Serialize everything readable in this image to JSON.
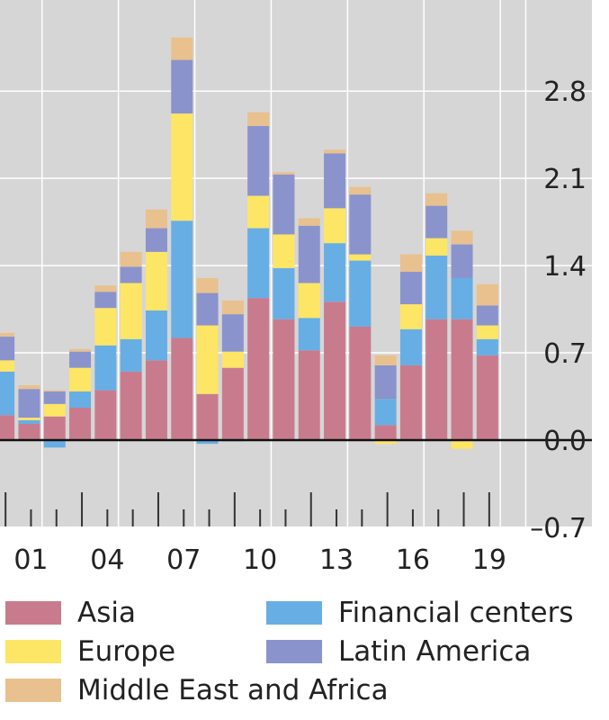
{
  "chart_data": {
    "type": "bar",
    "stacked": true,
    "title": "",
    "xlabel": "",
    "ylabel": "",
    "ylim": [
      -0.7,
      3.2
    ],
    "yticks": [
      "2.8",
      "2.1",
      "1.4",
      "0.7",
      "0.0",
      "–0.7"
    ],
    "ytick_values": [
      2.8,
      2.1,
      1.4,
      0.7,
      0.0,
      -0.7
    ],
    "xtick_labels": [
      "01",
      "04",
      "07",
      "10",
      "13",
      "16",
      "19"
    ],
    "xtick_years": [
      2001,
      2004,
      2007,
      2010,
      2013,
      2016,
      2019
    ],
    "x": [
      2000,
      2001,
      2002,
      2003,
      2004,
      2005,
      2006,
      2007,
      2008,
      2009,
      2010,
      2011,
      2012,
      2013,
      2014,
      2015,
      2016,
      2017,
      2018,
      2019
    ],
    "grid": true,
    "y_axis_side": "right",
    "legend_position": "bottom",
    "series": [
      {
        "name": "Asia",
        "color": "#c97b8e",
        "values": [
          0.2,
          0.13,
          0.19,
          0.26,
          0.4,
          0.55,
          0.64,
          0.82,
          0.37,
          0.58,
          1.14,
          0.97,
          0.72,
          1.11,
          0.91,
          0.12,
          0.6,
          0.97,
          0.97,
          0.68
        ]
      },
      {
        "name": "Financial centers",
        "color": "#67aee4",
        "values": [
          0.35,
          0.03,
          -0.06,
          0.13,
          0.36,
          0.26,
          0.4,
          0.94,
          -0.03,
          -0.01,
          0.56,
          0.41,
          0.26,
          0.47,
          0.53,
          0.21,
          0.29,
          0.51,
          0.33,
          0.13
        ]
      },
      {
        "name": "Europe",
        "color": "#fde565",
        "values": [
          0.09,
          0.02,
          0.1,
          0.19,
          0.3,
          0.45,
          0.47,
          0.86,
          0.55,
          0.13,
          0.26,
          0.27,
          0.28,
          0.28,
          0.05,
          -0.03,
          0.2,
          0.14,
          -0.07,
          0.11
        ]
      },
      {
        "name": "Latin America",
        "color": "#8a93cc",
        "values": [
          0.19,
          0.23,
          0.1,
          0.13,
          0.13,
          0.13,
          0.19,
          0.43,
          0.26,
          0.3,
          0.56,
          0.48,
          0.46,
          0.44,
          0.48,
          0.27,
          0.26,
          0.26,
          0.27,
          0.16
        ]
      },
      {
        "name": "Middle East and Africa",
        "color": "#e8c18e",
        "values": [
          0.03,
          0.03,
          0.01,
          0.02,
          0.05,
          0.12,
          0.15,
          0.18,
          0.12,
          0.11,
          0.11,
          0.02,
          0.06,
          0.03,
          0.06,
          0.08,
          0.14,
          0.1,
          0.11,
          0.17
        ]
      }
    ]
  },
  "legend": {
    "items": [
      {
        "label": "Asia",
        "color": "#c97b8e"
      },
      {
        "label": "Financial centers",
        "color": "#67aee4"
      },
      {
        "label": "Europe",
        "color": "#fde565"
      },
      {
        "label": "Latin America",
        "color": "#8a93cc"
      },
      {
        "label": "Middle East and Africa",
        "color": "#e8c18e"
      }
    ]
  }
}
